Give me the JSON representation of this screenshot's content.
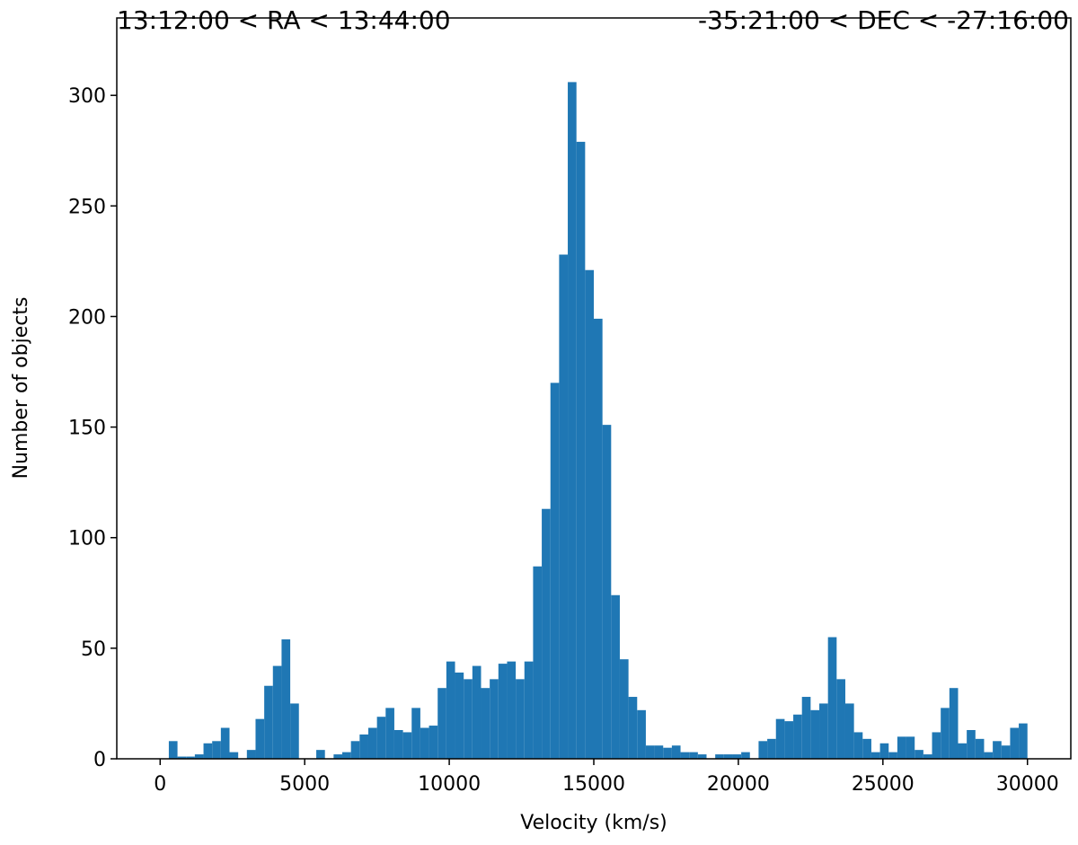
{
  "chart_data": {
    "type": "histogram",
    "titles": [
      "13:12:00 < RA < 13:44:00",
      "-35:21:00 < DEC < -27:16:00"
    ],
    "xlabel": "Velocity (km/s)",
    "ylabel": "Number of objects",
    "color": "#1f77b4",
    "bins": [
      0,
      300,
      600,
      900,
      1200,
      1500,
      1800,
      2100,
      2400,
      2700,
      3000,
      3300,
      3600,
      3900,
      4200,
      4500,
      4800,
      5100,
      5400,
      5700,
      6000,
      6300,
      6600,
      6900,
      7200,
      7500,
      7800,
      8100,
      8400,
      8700,
      9000,
      9300,
      9600,
      9900,
      10200,
      10500,
      10800,
      11100,
      11400,
      11700,
      12000,
      12300,
      12600,
      12900,
      13200,
      13500,
      13800,
      14100,
      14400,
      14700,
      15000,
      15300,
      15600,
      15900,
      16200,
      16500,
      16800,
      17100,
      17400,
      17700,
      18000,
      18300,
      18600,
      18900,
      19200,
      19500,
      19800,
      20100,
      20400,
      20700,
      21000,
      21300,
      21600,
      21900,
      22200,
      22500,
      22800,
      23100,
      23400,
      23700,
      24000,
      24300,
      24600,
      24900,
      25200,
      25500,
      25800,
      26100,
      26400,
      26700,
      27000,
      27300,
      27600,
      27900,
      28200,
      28500,
      28800,
      29100,
      29400,
      29700,
      30000
    ],
    "values": [
      0,
      8,
      1,
      1,
      2,
      7,
      8,
      14,
      3,
      0,
      4,
      18,
      33,
      42,
      54,
      25,
      0,
      0,
      4,
      0,
      2,
      3,
      8,
      11,
      14,
      19,
      23,
      13,
      12,
      23,
      14,
      15,
      32,
      44,
      39,
      36,
      42,
      32,
      36,
      43,
      44,
      36,
      44,
      87,
      113,
      170,
      228,
      306,
      279,
      221,
      199,
      151,
      74,
      45,
      28,
      22,
      6,
      6,
      5,
      6,
      3,
      3,
      2,
      0,
      2,
      2,
      2,
      3,
      0,
      8,
      9,
      18,
      17,
      20,
      28,
      22,
      25,
      55,
      36,
      25,
      12,
      9,
      3,
      7,
      3,
      10,
      10,
      4,
      2,
      12,
      23,
      32,
      7,
      13,
      9,
      3,
      8,
      6,
      14,
      16
    ],
    "xlim": [
      -1500,
      31500
    ],
    "ylim": [
      0,
      335
    ],
    "xticks": [
      0,
      5000,
      10000,
      15000,
      20000,
      25000,
      30000
    ],
    "yticks": [
      0,
      50,
      100,
      150,
      200,
      250,
      300
    ]
  }
}
